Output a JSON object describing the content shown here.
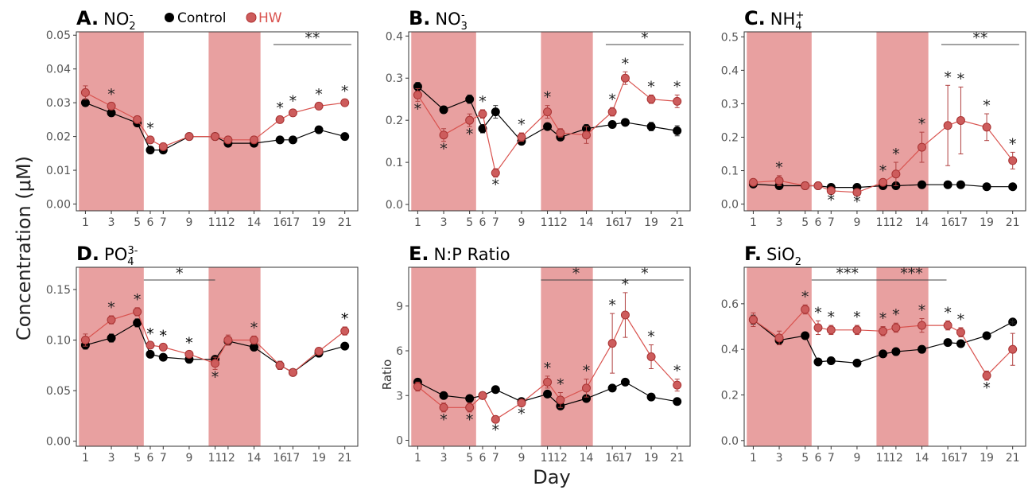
{
  "figure": {
    "ylabel": "Concentration (μM)",
    "xlabel": "Day",
    "legend": [
      {
        "label": "Control",
        "color": "#000000"
      },
      {
        "label": "HW",
        "color": "#d9534f"
      }
    ],
    "colors": {
      "control": "#000000",
      "hw": "#d9534f",
      "hw_fill": "#cd5c5c",
      "heatwave_band": "#e8a0a0"
    }
  },
  "chart_data": [
    {
      "type": "line",
      "panel": "A",
      "letter": "A.",
      "title_base": "NO",
      "title_sub": "2",
      "title_sup": "-",
      "ylabel": "",
      "x": [
        1,
        3,
        5,
        6,
        7,
        9,
        11,
        12,
        14,
        16,
        17,
        19,
        21
      ],
      "ylim": [
        -0.002,
        0.051
      ],
      "yticks": [
        "0.00",
        "0.01",
        "0.02",
        "0.03",
        "0.04",
        "0.05"
      ],
      "ytick_values": [
        0,
        0.01,
        0.02,
        0.03,
        0.04,
        0.05
      ],
      "heatwave_periods": [
        [
          1,
          5
        ],
        [
          11,
          14
        ]
      ],
      "series": [
        {
          "name": "Control",
          "values": [
            0.03,
            0.027,
            0.024,
            0.016,
            0.016,
            0.02,
            0.02,
            0.018,
            0.018,
            0.019,
            0.019,
            0.022,
            0.02
          ],
          "err": [
            0.001,
            0.001,
            0.001,
            0.001,
            0.001,
            0.001,
            0.001,
            0.001,
            0.001,
            0.001,
            0.001,
            0.001,
            0.001
          ]
        },
        {
          "name": "HW",
          "values": [
            0.033,
            0.029,
            0.025,
            0.019,
            0.017,
            0.02,
            0.02,
            0.019,
            0.019,
            0.025,
            0.027,
            0.029,
            0.03
          ],
          "err": [
            0.002,
            0.001,
            0.001,
            0.001,
            0.001,
            0.001,
            0.001,
            0.001,
            0.001,
            0.001,
            0.001,
            0.001,
            0.001
          ]
        }
      ],
      "stars": [
        {
          "x": 3,
          "text": "*",
          "pos": "above"
        },
        {
          "x": 6,
          "text": "*",
          "pos": "above"
        },
        {
          "x": 16,
          "text": "*",
          "pos": "above"
        },
        {
          "x": 17,
          "text": "*",
          "pos": "above"
        },
        {
          "x": 19,
          "text": "*",
          "pos": "above"
        },
        {
          "x": 21,
          "text": "*",
          "pos": "above"
        }
      ],
      "bars": [
        {
          "x0": 16,
          "x1": 21,
          "text": "**"
        }
      ]
    },
    {
      "type": "line",
      "panel": "B",
      "letter": "B.",
      "title_base": "NO",
      "title_sub": "3",
      "title_sup": "-",
      "ylabel": "",
      "x": [
        1,
        3,
        5,
        6,
        7,
        9,
        11,
        12,
        14,
        16,
        17,
        19,
        21
      ],
      "ylim": [
        -0.015,
        0.41
      ],
      "yticks": [
        "0.0",
        "0.1",
        "0.2",
        "0.3",
        "0.4"
      ],
      "ytick_values": [
        0,
        0.1,
        0.2,
        0.3,
        0.4
      ],
      "heatwave_periods": [
        [
          1,
          5
        ],
        [
          11,
          14
        ]
      ],
      "series": [
        {
          "name": "Control",
          "values": [
            0.28,
            0.225,
            0.25,
            0.18,
            0.22,
            0.15,
            0.185,
            0.16,
            0.18,
            0.19,
            0.195,
            0.185,
            0.175
          ],
          "err": [
            0.01,
            0.008,
            0.01,
            0.01,
            0.015,
            0.008,
            0.008,
            0.008,
            0.01,
            0.008,
            0.008,
            0.01,
            0.012
          ]
        },
        {
          "name": "HW",
          "values": [
            0.26,
            0.165,
            0.2,
            0.215,
            0.075,
            0.16,
            0.22,
            0.17,
            0.165,
            0.22,
            0.3,
            0.25,
            0.245
          ],
          "err": [
            0.015,
            0.015,
            0.015,
            0.01,
            0.01,
            0.01,
            0.015,
            0.01,
            0.02,
            0.01,
            0.015,
            0.01,
            0.015
          ]
        }
      ],
      "stars": [
        {
          "x": 1,
          "text": "*",
          "pos": "below"
        },
        {
          "x": 3,
          "text": "*",
          "pos": "below"
        },
        {
          "x": 5,
          "text": "*",
          "pos": "below"
        },
        {
          "x": 6,
          "text": "*",
          "pos": "above"
        },
        {
          "x": 7,
          "text": "*",
          "pos": "below"
        },
        {
          "x": 9,
          "text": "*",
          "pos": "above"
        },
        {
          "x": 11,
          "text": "*",
          "pos": "above"
        },
        {
          "x": 16,
          "text": "*",
          "pos": "above"
        },
        {
          "x": 17,
          "text": "*",
          "pos": "above"
        },
        {
          "x": 19,
          "text": "*",
          "pos": "above"
        },
        {
          "x": 21,
          "text": "*",
          "pos": "above"
        }
      ],
      "bars": [
        {
          "x0": 16,
          "x1": 21,
          "text": "*"
        }
      ]
    },
    {
      "type": "line",
      "panel": "C",
      "letter": "C.",
      "title_base": "NH",
      "title_sub": "4",
      "title_sup": "+",
      "ylabel": "",
      "x": [
        1,
        3,
        5,
        6,
        7,
        9,
        11,
        12,
        14,
        16,
        17,
        19,
        21
      ],
      "ylim": [
        -0.02,
        0.515
      ],
      "yticks": [
        "0.0",
        "0.1",
        "0.2",
        "0.3",
        "0.4",
        "0.5"
      ],
      "ytick_values": [
        0,
        0.1,
        0.2,
        0.3,
        0.4,
        0.5
      ],
      "heatwave_periods": [
        [
          1,
          5
        ],
        [
          11,
          14
        ]
      ],
      "series": [
        {
          "name": "Control",
          "values": [
            0.06,
            0.055,
            0.055,
            0.055,
            0.05,
            0.05,
            0.055,
            0.055,
            0.058,
            0.058,
            0.058,
            0.052,
            0.052
          ],
          "err": [
            0.003,
            0.003,
            0.003,
            0.003,
            0.003,
            0.003,
            0.003,
            0.003,
            0.003,
            0.003,
            0.003,
            0.003,
            0.003
          ]
        },
        {
          "name": "HW",
          "values": [
            0.065,
            0.07,
            0.055,
            0.055,
            0.04,
            0.035,
            0.065,
            0.09,
            0.17,
            0.235,
            0.25,
            0.23,
            0.13
          ],
          "err": [
            0.008,
            0.015,
            0.005,
            0.005,
            0.005,
            0.005,
            0.01,
            0.035,
            0.045,
            0.12,
            0.1,
            0.04,
            0.025
          ]
        }
      ],
      "stars": [
        {
          "x": 3,
          "text": "*",
          "pos": "above"
        },
        {
          "x": 7,
          "text": "*",
          "pos": "below"
        },
        {
          "x": 9,
          "text": "*",
          "pos": "below"
        },
        {
          "x": 11,
          "text": "*",
          "pos": "above"
        },
        {
          "x": 12,
          "text": "*",
          "pos": "above"
        },
        {
          "x": 14,
          "text": "*",
          "pos": "above"
        },
        {
          "x": 16,
          "text": "*",
          "pos": "above"
        },
        {
          "x": 17,
          "text": "*",
          "pos": "above"
        },
        {
          "x": 19,
          "text": "*",
          "pos": "above"
        },
        {
          "x": 21,
          "text": "*",
          "pos": "above"
        }
      ],
      "bars": [
        {
          "x0": 16,
          "x1": 21,
          "text": "**"
        }
      ]
    },
    {
      "type": "line",
      "panel": "D",
      "letter": "D.",
      "title_base": "PO",
      "title_sub": "4",
      "title_sup": "3-",
      "ylabel": "",
      "x": [
        1,
        3,
        5,
        6,
        7,
        9,
        11,
        12,
        14,
        16,
        17,
        19,
        21
      ],
      "ylim": [
        -0.005,
        0.172
      ],
      "yticks": [
        "0.00",
        "0.05",
        "0.10",
        "0.15"
      ],
      "ytick_values": [
        0,
        0.05,
        0.1,
        0.15
      ],
      "heatwave_periods": [
        [
          1,
          5
        ],
        [
          11,
          14
        ]
      ],
      "series": [
        {
          "name": "Control",
          "values": [
            0.095,
            0.102,
            0.117,
            0.086,
            0.083,
            0.081,
            0.081,
            0.099,
            0.093,
            0.075,
            0.068,
            0.087,
            0.094
          ],
          "err": [
            0.004,
            0.004,
            0.004,
            0.003,
            0.003,
            0.003,
            0.003,
            0.004,
            0.003,
            0.004,
            0.003,
            0.003,
            0.003
          ]
        },
        {
          "name": "HW",
          "values": [
            0.1,
            0.12,
            0.128,
            0.095,
            0.093,
            0.086,
            0.077,
            0.1,
            0.1,
            0.075,
            0.068,
            0.089,
            0.109
          ],
          "err": [
            0.006,
            0.004,
            0.004,
            0.003,
            0.003,
            0.003,
            0.006,
            0.005,
            0.004,
            0.004,
            0.003,
            0.003,
            0.004
          ]
        }
      ],
      "stars": [
        {
          "x": 3,
          "text": "*",
          "pos": "above"
        },
        {
          "x": 5,
          "text": "*",
          "pos": "above"
        },
        {
          "x": 6,
          "text": "*",
          "pos": "above",
          "dark": true
        },
        {
          "x": 7,
          "text": "*",
          "pos": "above",
          "dark": true
        },
        {
          "x": 9,
          "text": "*",
          "pos": "above",
          "dark": true
        },
        {
          "x": 11,
          "text": "*",
          "pos": "below"
        },
        {
          "x": 14,
          "text": "*",
          "pos": "above"
        },
        {
          "x": 21,
          "text": "*",
          "pos": "above",
          "dark": true
        }
      ],
      "bars": [
        {
          "x0": 6,
          "x1": 10.5,
          "text": "*"
        }
      ]
    },
    {
      "type": "line",
      "panel": "E",
      "letter": "E.",
      "title_base": "N:P Ratio",
      "title_sub": "",
      "title_sup": "",
      "ylabel": "Ratio",
      "x": [
        1,
        3,
        5,
        6,
        7,
        9,
        11,
        12,
        14,
        16,
        17,
        19,
        21
      ],
      "ylim": [
        -0.4,
        11.6
      ],
      "yticks": [
        "0",
        "3",
        "6",
        "9"
      ],
      "ytick_values": [
        0,
        3,
        6,
        9
      ],
      "heatwave_periods": [
        [
          1,
          5
        ],
        [
          11,
          14
        ]
      ],
      "series": [
        {
          "name": "Control",
          "values": [
            3.9,
            3.0,
            2.8,
            3.0,
            3.4,
            2.6,
            3.1,
            2.3,
            2.8,
            3.5,
            3.9,
            2.9,
            2.6
          ],
          "err": [
            0.2,
            0.1,
            0.1,
            0.1,
            0.1,
            0.1,
            0.1,
            0.1,
            0.1,
            0.1,
            0.1,
            0.1,
            0.1
          ]
        },
        {
          "name": "HW",
          "values": [
            3.6,
            2.2,
            2.2,
            3.0,
            1.4,
            2.5,
            3.9,
            2.7,
            3.5,
            6.5,
            8.4,
            5.6,
            3.7
          ],
          "err": [
            0.3,
            0.3,
            0.3,
            0.2,
            0.2,
            0.2,
            0.4,
            0.5,
            0.6,
            2.0,
            1.5,
            0.8,
            0.4
          ]
        }
      ],
      "stars": [
        {
          "x": 3,
          "text": "*",
          "pos": "below"
        },
        {
          "x": 5,
          "text": "*",
          "pos": "below"
        },
        {
          "x": 7,
          "text": "*",
          "pos": "below"
        },
        {
          "x": 9,
          "text": "*",
          "pos": "below"
        },
        {
          "x": 11,
          "text": "*",
          "pos": "above"
        },
        {
          "x": 12,
          "text": "*",
          "pos": "above"
        },
        {
          "x": 14,
          "text": "*",
          "pos": "above"
        },
        {
          "x": 16,
          "text": "*",
          "pos": "above"
        },
        {
          "x": 17,
          "text": "*",
          "pos": "above"
        },
        {
          "x": 19,
          "text": "*",
          "pos": "above"
        },
        {
          "x": 21,
          "text": "*",
          "pos": "above"
        }
      ],
      "bars": [
        {
          "x0": 11,
          "x1": 15.4,
          "text": "*"
        },
        {
          "x0": 16,
          "x1": 21,
          "text": "*"
        }
      ]
    },
    {
      "type": "line",
      "panel": "F",
      "letter": "F.",
      "title_base": "SiO",
      "title_sub": "2",
      "title_sup": "",
      "ylabel": "",
      "x": [
        1,
        3,
        5,
        6,
        7,
        9,
        11,
        12,
        14,
        16,
        17,
        19,
        21
      ],
      "ylim": [
        -0.025,
        0.76
      ],
      "yticks": [
        "0.0",
        "0.2",
        "0.4",
        "0.6"
      ],
      "ytick_values": [
        0,
        0.2,
        0.4,
        0.6
      ],
      "heatwave_periods": [
        [
          1,
          5
        ],
        [
          11,
          14
        ]
      ],
      "series": [
        {
          "name": "Control",
          "values": [
            0.53,
            0.44,
            0.46,
            0.345,
            0.35,
            0.34,
            0.38,
            0.39,
            0.4,
            0.43,
            0.425,
            0.46,
            0.52
          ],
          "err": [
            0.02,
            0.02,
            0.01,
            0.01,
            0.01,
            0.01,
            0.01,
            0.01,
            0.01,
            0.01,
            0.01,
            0.01,
            0.01
          ]
        },
        {
          "name": "HW",
          "values": [
            0.53,
            0.45,
            0.575,
            0.495,
            0.485,
            0.485,
            0.48,
            0.495,
            0.505,
            0.505,
            0.475,
            0.285,
            0.4
          ],
          "err": [
            0.03,
            0.03,
            0.02,
            0.03,
            0.02,
            0.02,
            0.02,
            0.02,
            0.03,
            0.02,
            0.02,
            0.02,
            0.07
          ]
        }
      ],
      "stars": [
        {
          "x": 5,
          "text": "*",
          "pos": "above"
        },
        {
          "x": 6,
          "text": "*",
          "pos": "above"
        },
        {
          "x": 7,
          "text": "*",
          "pos": "above"
        },
        {
          "x": 9,
          "text": "*",
          "pos": "above"
        },
        {
          "x": 11,
          "text": "*",
          "pos": "above"
        },
        {
          "x": 12,
          "text": "*",
          "pos": "above"
        },
        {
          "x": 14,
          "text": "*",
          "pos": "above"
        },
        {
          "x": 16,
          "text": "*",
          "pos": "above"
        },
        {
          "x": 17,
          "text": "*",
          "pos": "above"
        },
        {
          "x": 19,
          "text": "*",
          "pos": "below"
        },
        {
          "x": 21,
          "text": "*",
          "pos": "above"
        }
      ],
      "bars": [
        {
          "x0": 6,
          "x1": 10.5,
          "text": "***"
        },
        {
          "x0": 11,
          "x1": 15.4,
          "text": "***"
        }
      ]
    }
  ]
}
